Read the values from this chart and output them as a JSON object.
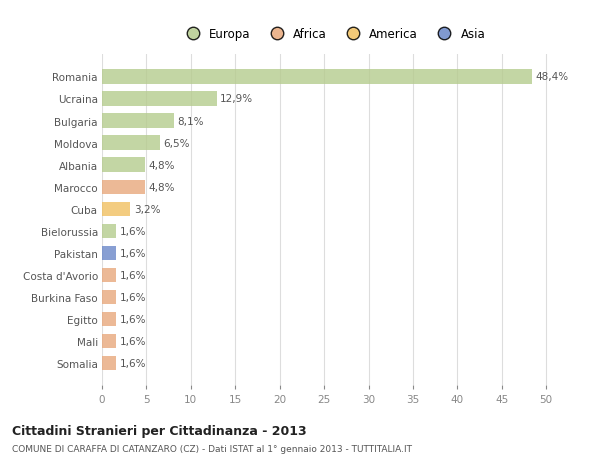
{
  "categories": [
    "Romania",
    "Ucraina",
    "Bulgaria",
    "Moldova",
    "Albania",
    "Marocco",
    "Cuba",
    "Bielorussia",
    "Pakistan",
    "Costa d'Avorio",
    "Burkina Faso",
    "Egitto",
    "Mali",
    "Somalia"
  ],
  "values": [
    48.4,
    12.9,
    8.1,
    6.5,
    4.8,
    4.8,
    3.2,
    1.6,
    1.6,
    1.6,
    1.6,
    1.6,
    1.6,
    1.6
  ],
  "labels": [
    "48,4%",
    "12,9%",
    "8,1%",
    "6,5%",
    "4,8%",
    "4,8%",
    "3,2%",
    "1,6%",
    "1,6%",
    "1,6%",
    "1,6%",
    "1,6%",
    "1,6%",
    "1,6%"
  ],
  "colors": [
    "#b5cc8e",
    "#b5cc8e",
    "#b5cc8e",
    "#b5cc8e",
    "#b5cc8e",
    "#e8a87c",
    "#f0c060",
    "#b5cc8e",
    "#6a87c8",
    "#e8a87c",
    "#e8a87c",
    "#e8a87c",
    "#e8a87c",
    "#e8a87c"
  ],
  "legend": [
    {
      "label": "Europa",
      "color": "#b5cc8e"
    },
    {
      "label": "Africa",
      "color": "#e8a87c"
    },
    {
      "label": "America",
      "color": "#f0c060"
    },
    {
      "label": "Asia",
      "color": "#6a87c8"
    }
  ],
  "xlim": [
    0,
    52
  ],
  "xticks": [
    0,
    5,
    10,
    15,
    20,
    25,
    30,
    35,
    40,
    45,
    50
  ],
  "title": "Cittadini Stranieri per Cittadinanza - 2013",
  "subtitle": "COMUNE DI CARAFFA DI CATANZARO (CZ) - Dati ISTAT al 1° gennaio 2013 - TUTTITALIA.IT",
  "bg_color": "#ffffff",
  "grid_color": "#dddddd",
  "bar_height": 0.65
}
